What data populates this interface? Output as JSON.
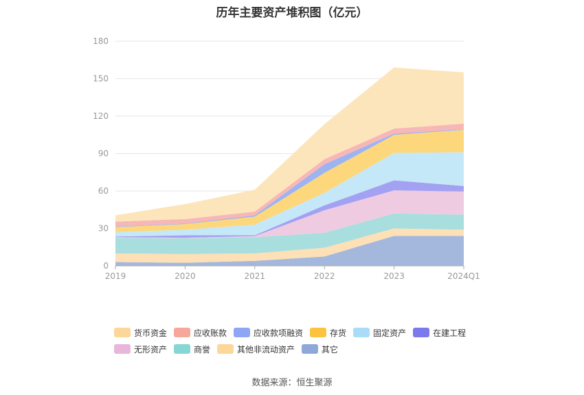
{
  "chart_data": {
    "type": "area",
    "stacked": true,
    "title": "历年主要资产堆积图（亿元）",
    "categories": [
      "2019",
      "2020",
      "2021",
      "2022",
      "2023",
      "2024Q1"
    ],
    "ylim": [
      0,
      180
    ],
    "yticks": [
      0,
      30,
      60,
      90,
      120,
      150,
      180
    ],
    "grid": true,
    "legend_position": "bottom",
    "series": [
      {
        "name": "其它",
        "color": "#a4b8dd",
        "values": [
          3,
          2.5,
          4,
          7.5,
          24,
          24
        ]
      },
      {
        "name": "其他非流动资产",
        "color": "#fde0b5",
        "values": [
          7,
          7,
          6,
          7,
          6,
          5
        ]
      },
      {
        "name": "商誉",
        "color": "#a8dede",
        "values": [
          12.5,
          12.5,
          13,
          12,
          12,
          12
        ]
      },
      {
        "name": "无形资产",
        "color": "#efcbe2",
        "values": [
          0.5,
          0.5,
          0.8,
          18,
          18.5,
          18.5
        ]
      },
      {
        "name": "在建工程",
        "color": "#a3a1f1",
        "values": [
          0.5,
          2,
          0.7,
          4,
          8,
          4.5
        ]
      },
      {
        "name": "固定资产",
        "color": "#c5e8f8",
        "values": [
          3.5,
          4.5,
          8.5,
          10,
          22,
          27
        ]
      },
      {
        "name": "存货",
        "color": "#fdd77b",
        "values": [
          4,
          4.5,
          6.5,
          16,
          14.5,
          18
        ]
      },
      {
        "name": "应收款项融资",
        "color": "#9db4f1",
        "values": [
          0.5,
          0.5,
          1,
          7,
          1,
          0.5
        ]
      },
      {
        "name": "应收账款",
        "color": "#f8b7b7",
        "values": [
          4,
          3.5,
          3,
          4,
          4,
          4.5
        ]
      },
      {
        "name": "货币资金",
        "color": "#fde5bb",
        "values": [
          5,
          12,
          17.5,
          28,
          49,
          41
        ]
      }
    ]
  },
  "legend": {
    "items": [
      {
        "name": "货币资金",
        "color": "#fdd699"
      },
      {
        "name": "应收账款",
        "color": "#f7a69a"
      },
      {
        "name": "应收款项融资",
        "color": "#8fa6f5"
      },
      {
        "name": "存货",
        "color": "#fcc43e"
      },
      {
        "name": "固定资产",
        "color": "#a8dcf7"
      },
      {
        "name": "在建工程",
        "color": "#7b79ec"
      },
      {
        "name": "无形资产",
        "color": "#e9b5da"
      },
      {
        "name": "商誉",
        "color": "#86d6d5"
      },
      {
        "name": "其他非流动资产",
        "color": "#fdd699"
      },
      {
        "name": "其它",
        "color": "#8ea9d9"
      }
    ]
  },
  "source": "数据来源：恒生聚源"
}
